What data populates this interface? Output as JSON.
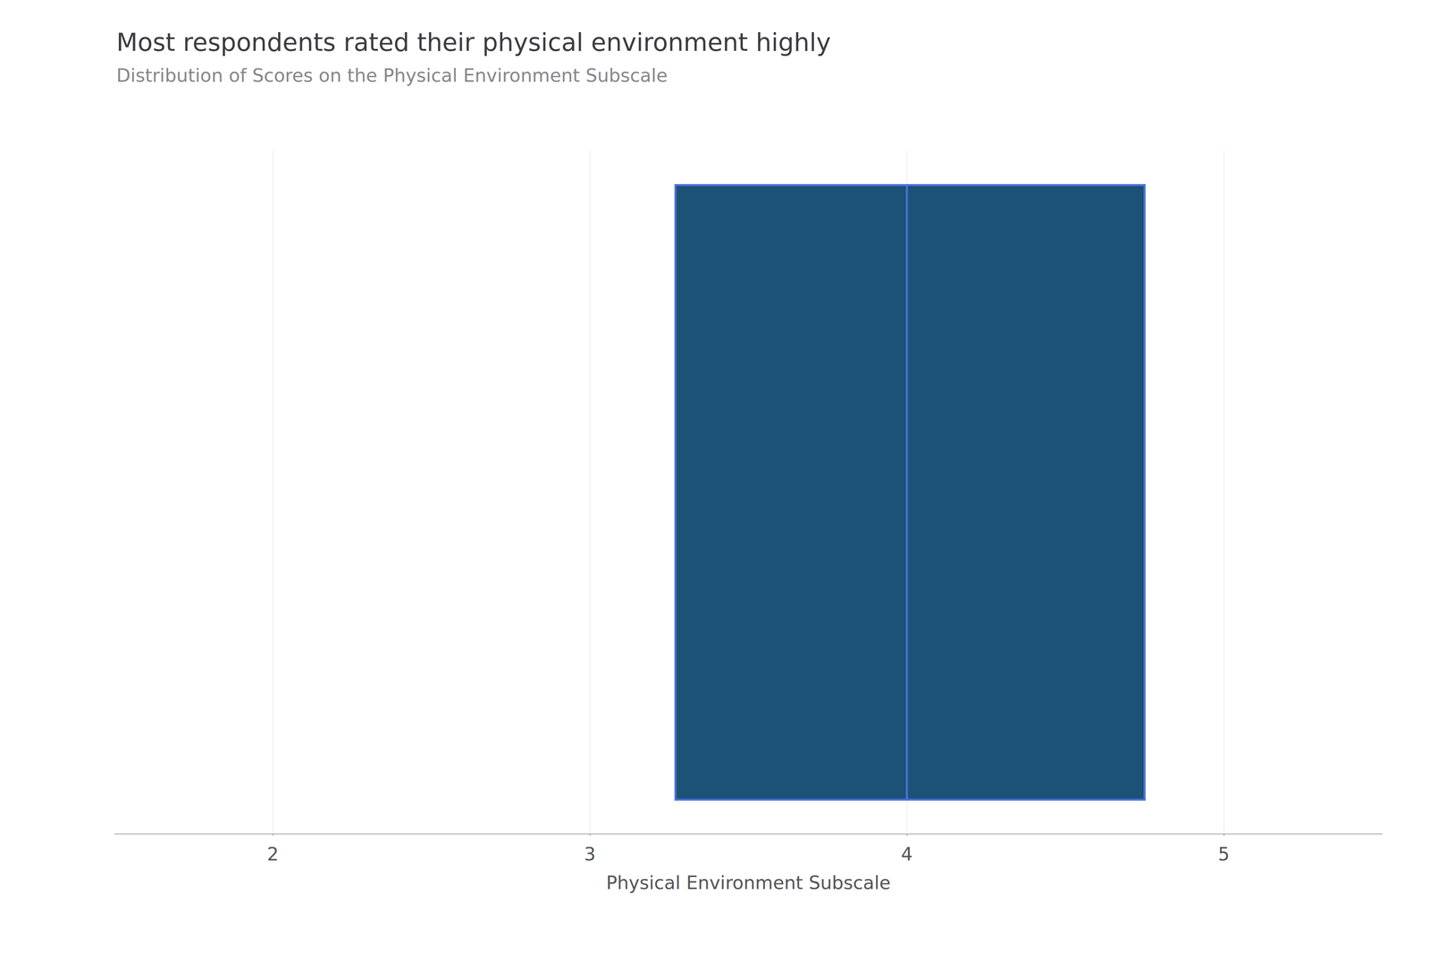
{
  "chart_data": {
    "type": "boxplot",
    "orientation": "horizontal",
    "title": "Most respondents rated their physical environment highly",
    "subtitle": "Distribution of Scores on the Physical Environment Subscale",
    "xlabel": "Physical Environment Subscale",
    "q1": 3.27,
    "median": 4.0,
    "q3": 4.75,
    "whisker_low": 3.27,
    "whisker_high": 4.75,
    "xlim": [
      1.5,
      5.5
    ],
    "xticks": [
      2,
      3,
      4,
      5
    ],
    "grid": true,
    "tick_labels": "x",
    "color": "#1B5276"
  }
}
